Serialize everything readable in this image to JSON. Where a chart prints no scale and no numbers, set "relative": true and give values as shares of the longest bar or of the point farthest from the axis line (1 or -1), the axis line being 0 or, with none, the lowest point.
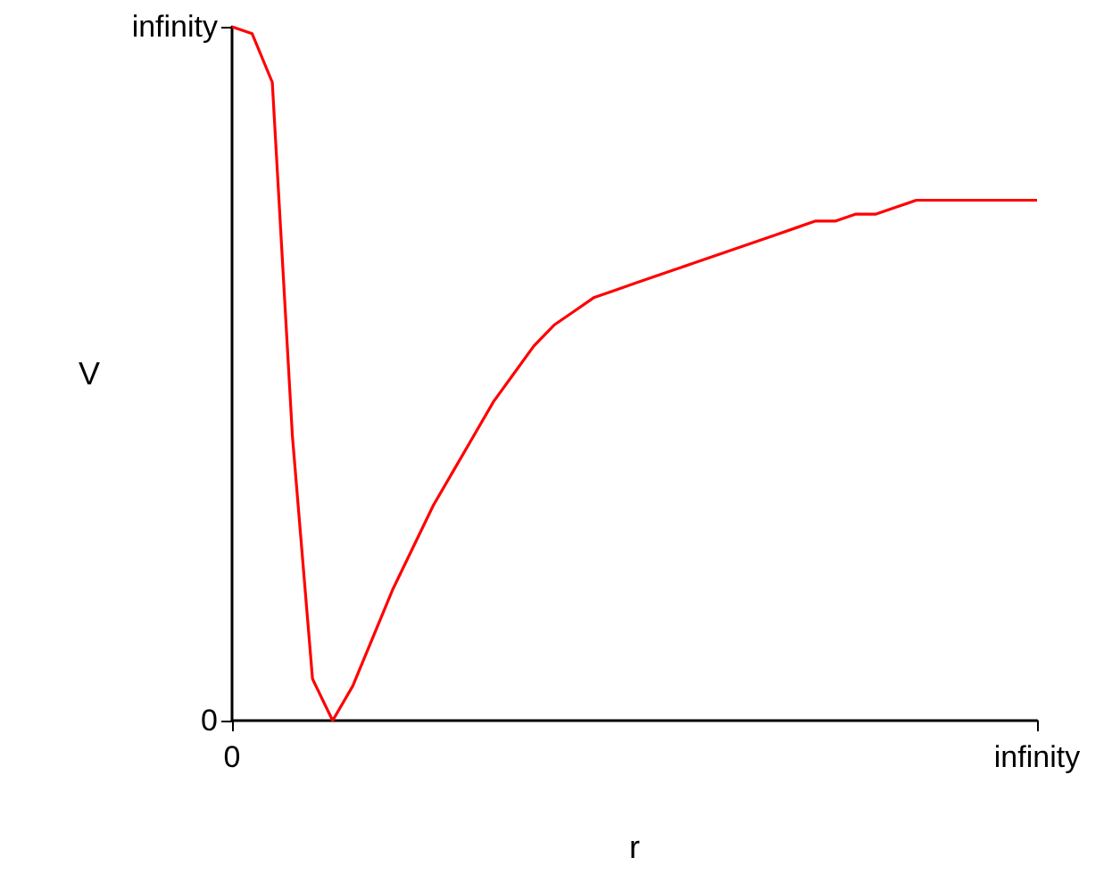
{
  "chart_data": {
    "type": "line",
    "xlabel": "r",
    "ylabel": "V",
    "relative": true,
    "grid": false,
    "annotations": [
      "0",
      "infinity"
    ],
    "categories": [
      "0",
      null,
      null,
      null,
      null,
      null,
      null,
      null,
      null,
      null,
      null,
      null,
      null,
      null,
      null,
      null,
      null,
      null,
      null,
      null,
      null,
      null,
      null,
      null,
      null,
      null,
      null,
      null,
      null,
      null,
      null,
      null,
      null,
      null,
      null,
      null,
      null,
      null,
      null,
      null,
      "infinity"
    ],
    "series": [
      {
        "color": "#ff0000",
        "values": [
          1,
          0.99,
          0.92,
          0.41,
          0.06,
          0,
          0.05,
          0.12,
          0.19,
          0.25,
          0.31,
          0.36,
          0.41,
          0.46,
          0.5,
          0.54,
          0.57,
          0.59,
          0.61,
          0.62,
          0.63,
          0.64,
          0.65,
          0.66,
          0.67,
          0.68,
          0.69,
          0.7,
          0.71,
          0.72,
          0.72,
          0.73,
          0.73,
          0.74,
          0.75,
          0.75,
          0.75,
          0.75,
          0.75,
          0.75,
          0.75
        ]
      }
    ]
  }
}
